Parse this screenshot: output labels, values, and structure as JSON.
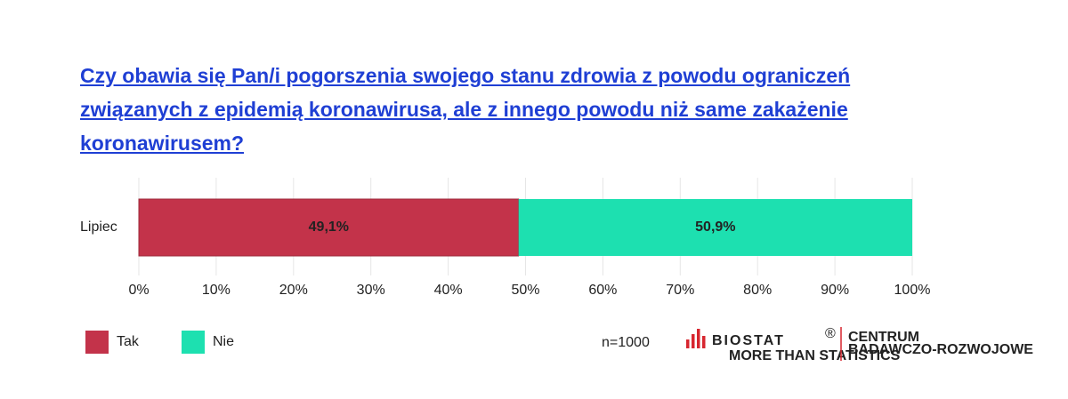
{
  "chart_data": {
    "type": "stacked-bar-horizontal",
    "title": "Czy obawia się Pan/i pogorszenia swojego stanu zdrowia z powodu ograniczeń związanych z epidemią koronawirusa, ale z innego powodu niż same zakażenie koronawirusem?",
    "categories": [
      "Lipiec"
    ],
    "series": [
      {
        "name": "Tak",
        "color": "#c3334a",
        "values": [
          49.1
        ],
        "value_labels": [
          "49,1%"
        ]
      },
      {
        "name": "Nie",
        "color": "#1de0b0",
        "values": [
          50.9
        ],
        "value_labels": [
          "50,9%"
        ]
      }
    ],
    "xlim": [
      0,
      100
    ],
    "xticks": [
      {
        "value": 0,
        "label": "0%"
      },
      {
        "value": 10,
        "label": "10%"
      },
      {
        "value": 20,
        "label": "20%"
      },
      {
        "value": 30,
        "label": "30%"
      },
      {
        "value": 40,
        "label": "40%"
      },
      {
        "value": 50,
        "label": "50%"
      },
      {
        "value": 60,
        "label": "60%"
      },
      {
        "value": 70,
        "label": "70%"
      },
      {
        "value": 80,
        "label": "80%"
      },
      {
        "value": 90,
        "label": "90%"
      },
      {
        "value": 100,
        "label": "100%"
      }
    ],
    "grid": true,
    "legend": "bottom-left",
    "note": "n=1000",
    "logo": {
      "name": "BIOSTAT",
      "tagline": "MORE THAN STATISTICS",
      "unit": [
        "CENTRUM",
        "BADAWCZO-ROZWOJOWE"
      ]
    }
  }
}
